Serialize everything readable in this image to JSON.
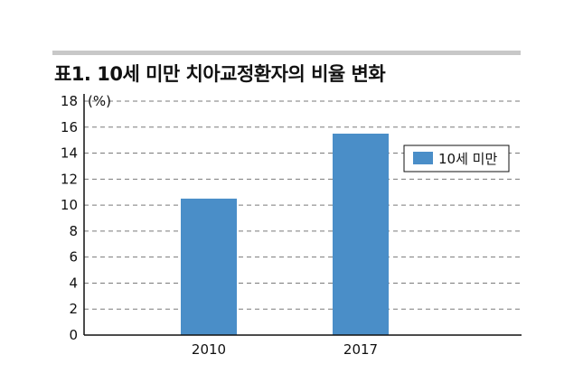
{
  "title": "표1. 10세 미만 치아교정환자의 비율 변화",
  "chart_data": {
    "type": "bar",
    "title": "표1. 10세 미만 치아교정환자의 비율 변화",
    "categories": [
      "2010",
      "2017"
    ],
    "series": [
      {
        "name": "10세 미만",
        "values": [
          10.5,
          15.5
        ]
      }
    ],
    "unit_label": "(%)",
    "xlabel": "",
    "ylabel": "",
    "ylim": [
      0,
      18
    ],
    "yticks": [
      0,
      2,
      4,
      6,
      8,
      10,
      12,
      14,
      16,
      18
    ],
    "grid": true,
    "legend_position": "right",
    "bar_color": "#4a8ec8"
  }
}
